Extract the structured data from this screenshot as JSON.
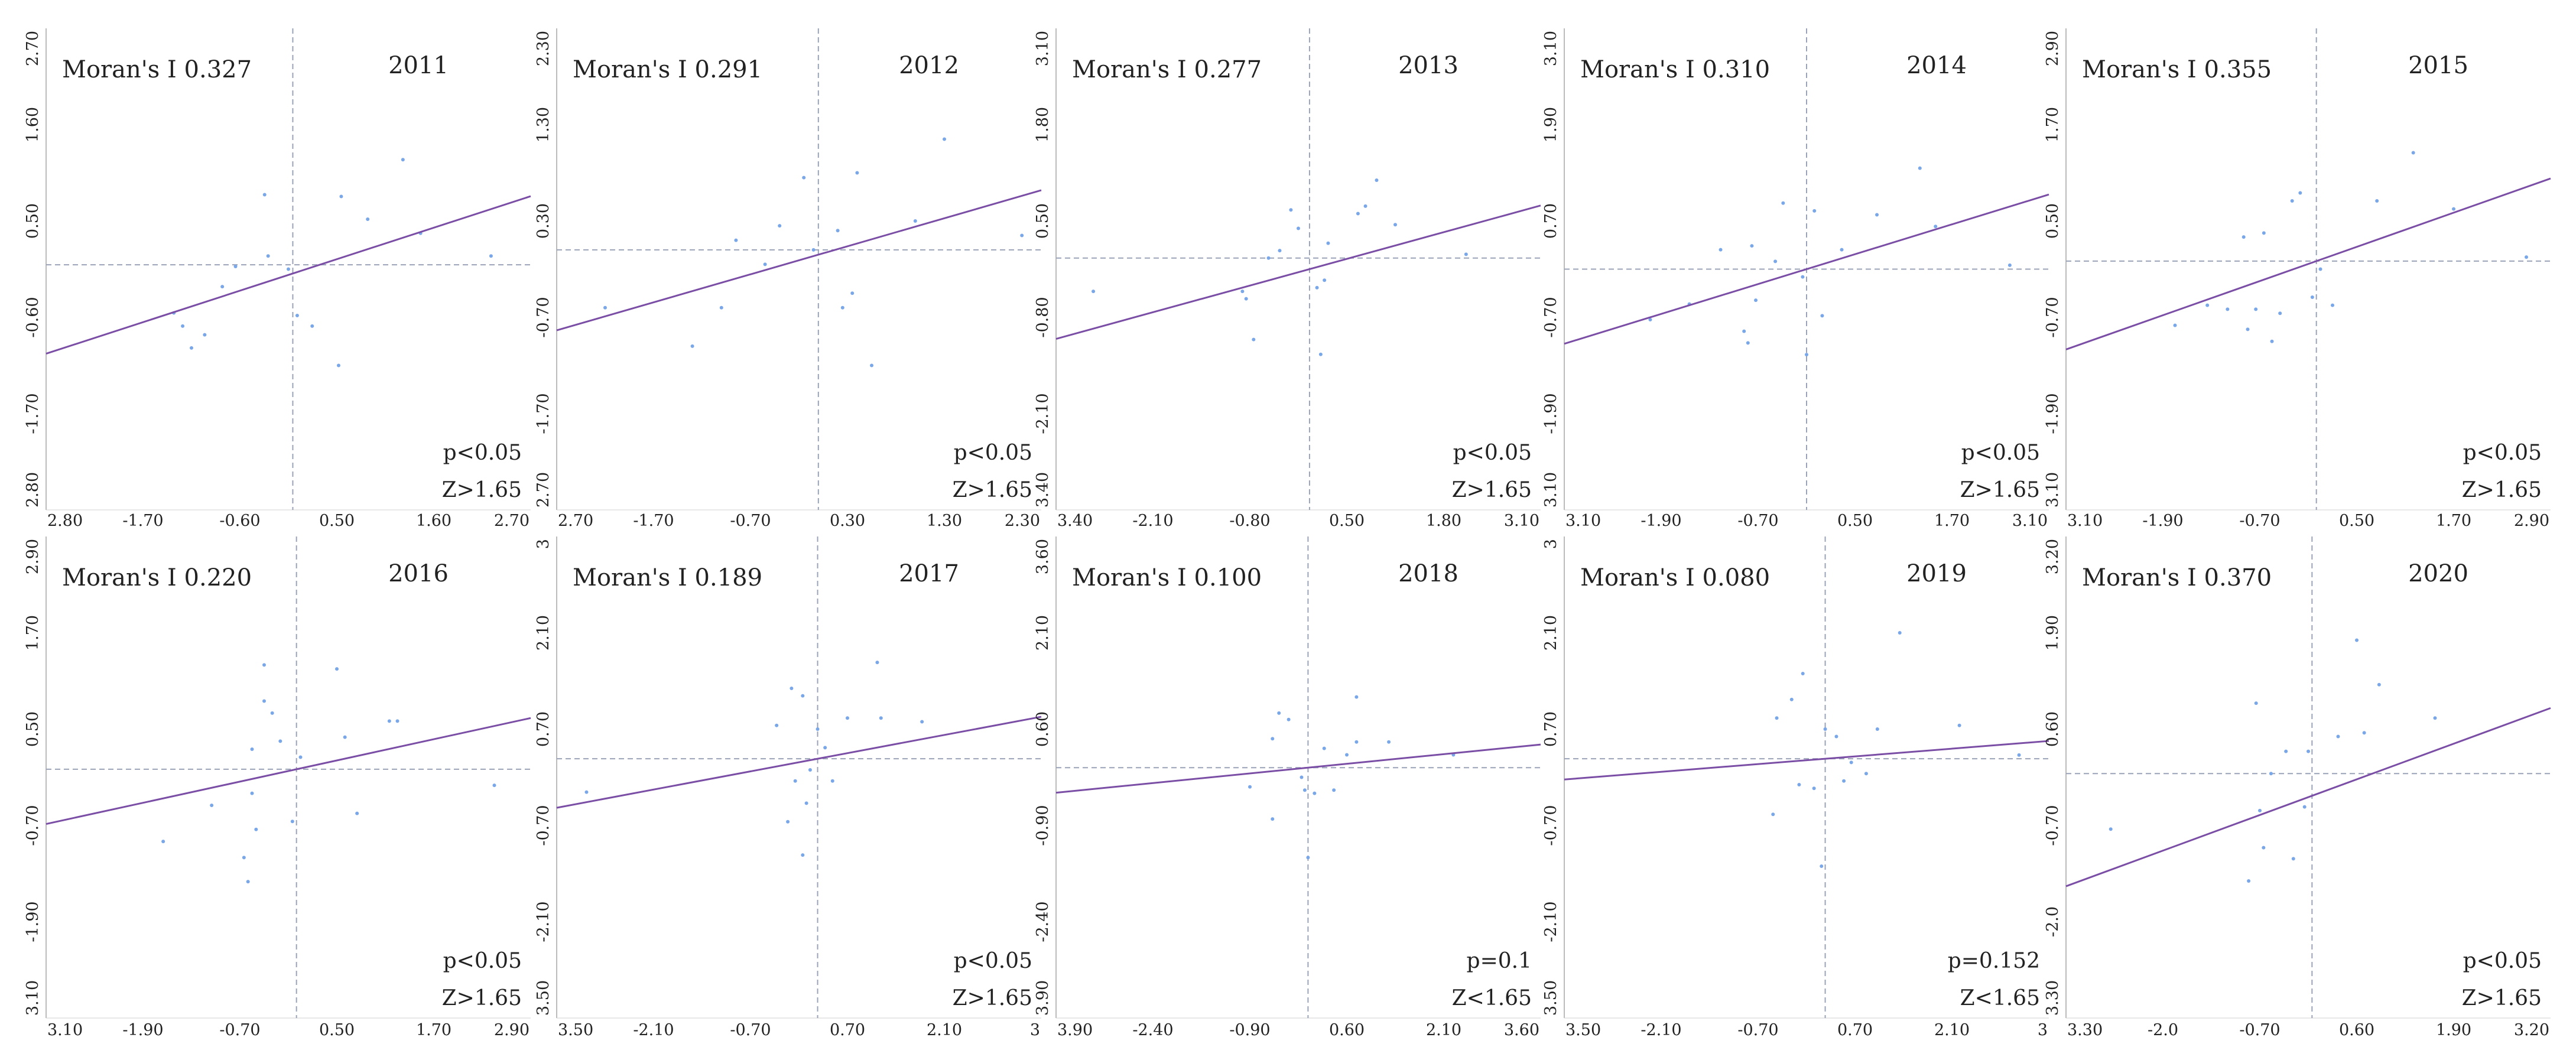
{
  "chart_data": [
    {
      "type": "scatter",
      "title": "2011",
      "moran_label": "Moran's I 0.327",
      "p_label": "p<0.05",
      "z_label": "Z>1.65",
      "xlim": [
        -2.8,
        2.7
      ],
      "ylim": [
        -2.8,
        2.7
      ],
      "x_ticks": [
        "2.80",
        "-1.70",
        "-0.60",
        "0.50",
        "1.60",
        "2.70"
      ],
      "y_ticks": [
        "2.70",
        "1.60",
        "0.50",
        "-0.60",
        "-1.70",
        "2.80"
      ],
      "slope": 0.327,
      "intercept": -0.1,
      "points": [
        [
          -1.35,
          -0.55
        ],
        [
          -1.25,
          -0.7
        ],
        [
          -1.15,
          -0.95
        ],
        [
          -1.0,
          -0.8
        ],
        [
          -0.8,
          -0.25
        ],
        [
          -0.65,
          -0.02
        ],
        [
          -0.32,
          0.8
        ],
        [
          -0.28,
          0.1
        ],
        [
          -0.05,
          -0.05
        ],
        [
          0.05,
          -0.58
        ],
        [
          0.22,
          -0.7
        ],
        [
          0.52,
          -1.15
        ],
        [
          0.55,
          0.78
        ],
        [
          0.85,
          0.52
        ],
        [
          1.25,
          1.2
        ],
        [
          1.45,
          0.36
        ],
        [
          2.25,
          0.1
        ]
      ]
    },
    {
      "type": "scatter",
      "title": "2012",
      "moran_label": "Moran's I 0.291",
      "p_label": "p<0.05",
      "z_label": "Z>1.65",
      "xlim": [
        -2.7,
        2.3
      ],
      "ylim": [
        -2.7,
        2.3
      ],
      "x_ticks": [
        "2.70",
        "-1.70",
        "-0.70",
        "0.30",
        "1.30",
        "2.30"
      ],
      "y_ticks": [
        "2.30",
        "1.30",
        "0.30",
        "-0.70",
        "-1.70",
        "2.70"
      ],
      "slope": 0.291,
      "intercept": -0.05,
      "points": [
        [
          -2.2,
          -0.6
        ],
        [
          -1.3,
          -1.0
        ],
        [
          -1.0,
          -0.6
        ],
        [
          -0.85,
          0.1
        ],
        [
          -0.55,
          -0.15
        ],
        [
          -0.4,
          0.25
        ],
        [
          -0.15,
          0.75
        ],
        [
          -0.05,
          0.0
        ],
        [
          0.2,
          0.2
        ],
        [
          0.25,
          -0.6
        ],
        [
          0.35,
          -0.45
        ],
        [
          0.4,
          0.8
        ],
        [
          0.55,
          -1.2
        ],
        [
          1.0,
          0.3
        ],
        [
          1.3,
          1.15
        ],
        [
          2.1,
          0.15
        ]
      ]
    },
    {
      "type": "scatter",
      "title": "2013",
      "moran_label": "Moran's I 0.277",
      "p_label": "p<0.05",
      "z_label": "Z>1.65",
      "xlim": [
        -3.4,
        3.1
      ],
      "ylim": [
        -3.4,
        3.1
      ],
      "x_ticks": [
        "3.40",
        "-2.10",
        "-0.80",
        "0.50",
        "1.80",
        "3.10"
      ],
      "y_ticks": [
        "3.10",
        "1.80",
        "0.50",
        "-0.80",
        "-2.10",
        "3.40"
      ],
      "slope": 0.277,
      "intercept": -0.15,
      "points": [
        [
          -2.9,
          -0.45
        ],
        [
          -0.9,
          -0.45
        ],
        [
          -0.85,
          -0.55
        ],
        [
          -0.75,
          -1.1
        ],
        [
          -0.55,
          0.0
        ],
        [
          -0.4,
          0.1
        ],
        [
          -0.25,
          0.65
        ],
        [
          -0.15,
          0.4
        ],
        [
          0.1,
          -0.4
        ],
        [
          0.15,
          -1.3
        ],
        [
          0.2,
          -0.3
        ],
        [
          0.25,
          0.2
        ],
        [
          0.65,
          0.6
        ],
        [
          0.75,
          0.7
        ],
        [
          0.9,
          1.05
        ],
        [
          1.15,
          0.45
        ],
        [
          2.1,
          0.05
        ]
      ]
    },
    {
      "type": "scatter",
      "title": "2014",
      "moran_label": "Moran's I 0.310",
      "p_label": "p<0.05",
      "z_label": "Z>1.65",
      "xlim": [
        -3.1,
        3.1
      ],
      "ylim": [
        -3.1,
        3.1
      ],
      "x_ticks": [
        "3.10",
        "-1.90",
        "-0.70",
        "0.50",
        "1.70",
        "3.10"
      ],
      "y_ticks": [
        "3.10",
        "1.90",
        "0.70",
        "-0.70",
        "-1.90",
        "3.10"
      ],
      "slope": 0.31,
      "intercept": 0.0,
      "points": [
        [
          -2.0,
          -0.65
        ],
        [
          -1.5,
          -0.45
        ],
        [
          -1.1,
          0.25
        ],
        [
          -0.8,
          -0.8
        ],
        [
          -0.75,
          -0.95
        ],
        [
          -0.65,
          -0.4
        ],
        [
          -0.7,
          0.3
        ],
        [
          -0.4,
          0.1
        ],
        [
          -0.3,
          0.85
        ],
        [
          -0.05,
          -0.1
        ],
        [
          0.0,
          -1.1
        ],
        [
          0.1,
          0.75
        ],
        [
          0.2,
          -0.6
        ],
        [
          0.45,
          0.25
        ],
        [
          0.9,
          0.7
        ],
        [
          1.45,
          1.3
        ],
        [
          1.65,
          0.55
        ],
        [
          2.6,
          0.05
        ]
      ]
    },
    {
      "type": "scatter",
      "title": "2015",
      "moran_label": "Moran's I 0.355",
      "p_label": "p<0.05",
      "z_label": "Z>1.65",
      "xlim": [
        -3.1,
        2.9
      ],
      "ylim": [
        -3.1,
        2.9
      ],
      "x_ticks": [
        "3.10",
        "-1.90",
        "-0.70",
        "0.50",
        "1.70",
        "2.90"
      ],
      "y_ticks": [
        "2.90",
        "1.70",
        "0.50",
        "-0.70",
        "-1.90",
        "3.10"
      ],
      "slope": 0.355,
      "intercept": 0.0,
      "points": [
        [
          -1.75,
          -0.8
        ],
        [
          -1.35,
          -0.55
        ],
        [
          -1.1,
          -0.6
        ],
        [
          -0.9,
          0.3
        ],
        [
          -0.85,
          -0.85
        ],
        [
          -0.75,
          -0.6
        ],
        [
          -0.65,
          0.35
        ],
        [
          -0.55,
          -1.0
        ],
        [
          -0.45,
          -0.65
        ],
        [
          -0.3,
          0.75
        ],
        [
          -0.2,
          0.85
        ],
        [
          -0.05,
          -0.45
        ],
        [
          0.05,
          -0.1
        ],
        [
          0.2,
          -0.55
        ],
        [
          0.75,
          0.75
        ],
        [
          1.2,
          1.35
        ],
        [
          1.7,
          0.65
        ],
        [
          2.6,
          0.05
        ]
      ]
    },
    {
      "type": "scatter",
      "title": "2016",
      "moran_label": "Moran's I 0.220",
      "p_label": "p<0.05",
      "z_label": "Z>1.65",
      "xlim": [
        -3.1,
        2.9
      ],
      "ylim": [
        -3.1,
        2.9
      ],
      "x_ticks": [
        "3.10",
        "-1.90",
        "-0.70",
        "0.50",
        "1.70",
        "2.90"
      ],
      "y_ticks": [
        "2.90",
        "1.70",
        "0.50",
        "-0.70",
        "-1.90",
        "3.10"
      ],
      "slope": 0.22,
      "intercept": 0.0,
      "points": [
        [
          -1.65,
          -0.9
        ],
        [
          -1.05,
          -0.45
        ],
        [
          -0.55,
          -0.3
        ],
        [
          -0.65,
          -1.1
        ],
        [
          -0.6,
          -1.4
        ],
        [
          -0.5,
          -0.75
        ],
        [
          -0.4,
          1.3
        ],
        [
          -0.4,
          0.85
        ],
        [
          -0.3,
          0.7
        ],
        [
          -0.55,
          0.25
        ],
        [
          -0.2,
          0.35
        ],
        [
          -0.05,
          -0.65
        ],
        [
          0.05,
          0.15
        ],
        [
          0.5,
          1.25
        ],
        [
          0.6,
          0.4
        ],
        [
          0.75,
          -0.55
        ],
        [
          1.15,
          0.6
        ],
        [
          1.25,
          0.6
        ],
        [
          2.45,
          -0.2
        ]
      ]
    },
    {
      "type": "scatter",
      "title": "2017",
      "moran_label": "Moran's I 0.189",
      "p_label": "p<0.05",
      "z_label": "Z>1.65",
      "xlim": [
        -3.5,
        3.0
      ],
      "ylim": [
        -3.5,
        3.0
      ],
      "x_ticks": [
        "3.50",
        "-2.10",
        "-0.70",
        "0.70",
        "2.10",
        "3"
      ],
      "y_ticks": [
        "3",
        "2.10",
        "0.70",
        "-0.70",
        "-2.10",
        "3.50"
      ],
      "slope": 0.189,
      "intercept": 0.0,
      "points": [
        [
          -3.1,
          -0.45
        ],
        [
          -0.55,
          0.45
        ],
        [
          -0.4,
          -0.85
        ],
        [
          -0.3,
          -0.3
        ],
        [
          -0.35,
          0.95
        ],
        [
          -0.2,
          0.85
        ],
        [
          -0.15,
          -0.6
        ],
        [
          -0.2,
          -1.3
        ],
        [
          -0.1,
          -0.15
        ],
        [
          0.0,
          0.4
        ],
        [
          0.1,
          0.15
        ],
        [
          0.2,
          -0.3
        ],
        [
          0.4,
          0.55
        ],
        [
          0.8,
          1.3
        ],
        [
          0.85,
          0.55
        ],
        [
          1.4,
          0.5
        ]
      ]
    },
    {
      "type": "scatter",
      "title": "2018",
      "moran_label": "Moran's I 0.100",
      "p_label": "p=0.1",
      "z_label": "Z<1.65",
      "xlim": [
        -3.9,
        3.6
      ],
      "ylim": [
        -3.9,
        3.6
      ],
      "x_ticks": [
        "3.90",
        "-2.40",
        "-0.90",
        "0.60",
        "2.10",
        "3.60"
      ],
      "y_ticks": [
        "3.60",
        "2.10",
        "0.60",
        "-0.90",
        "-2.40",
        "3.90"
      ],
      "slope": 0.1,
      "intercept": 0.0,
      "points": [
        [
          -0.9,
          -0.3
        ],
        [
          -0.55,
          0.45
        ],
        [
          -0.45,
          0.85
        ],
        [
          -0.3,
          0.75
        ],
        [
          -0.55,
          -0.8
        ],
        [
          -0.1,
          -0.15
        ],
        [
          -0.05,
          -0.35
        ],
        [
          0.0,
          -1.4
        ],
        [
          0.1,
          -0.4
        ],
        [
          0.25,
          0.3
        ],
        [
          0.4,
          -0.35
        ],
        [
          0.6,
          0.2
        ],
        [
          0.75,
          0.4
        ],
        [
          0.75,
          1.1
        ],
        [
          1.25,
          0.4
        ],
        [
          2.25,
          0.2
        ]
      ]
    },
    {
      "type": "scatter",
      "title": "2019",
      "moran_label": "Moran's I 0.080",
      "p_label": "p=0.152",
      "z_label": "Z<1.65",
      "xlim": [
        -3.5,
        3.0
      ],
      "ylim": [
        -3.5,
        3.0
      ],
      "x_ticks": [
        "3.50",
        "-2.10",
        "-0.70",
        "0.70",
        "2.10",
        "3"
      ],
      "y_ticks": [
        "3",
        "2.10",
        "0.70",
        "-0.70",
        "-2.10",
        "3.50"
      ],
      "slope": 0.08,
      "intercept": 0.0,
      "points": [
        [
          -0.7,
          -0.75
        ],
        [
          -0.65,
          0.55
        ],
        [
          -0.45,
          0.8
        ],
        [
          -0.3,
          1.15
        ],
        [
          -0.35,
          -0.35
        ],
        [
          -0.15,
          -0.4
        ],
        [
          -0.05,
          -1.45
        ],
        [
          0.0,
          0.4
        ],
        [
          0.15,
          0.3
        ],
        [
          0.25,
          -0.3
        ],
        [
          0.35,
          -0.05
        ],
        [
          0.55,
          -0.2
        ],
        [
          0.7,
          0.4
        ],
        [
          1.0,
          1.7
        ],
        [
          1.8,
          0.45
        ],
        [
          2.6,
          0.05
        ]
      ]
    },
    {
      "type": "scatter",
      "title": "2020",
      "moran_label": "Moran's I 0.370",
      "p_label": "p<0.05",
      "z_label": "Z>1.65",
      "xlim": [
        -3.3,
        3.2
      ],
      "ylim": [
        -3.3,
        3.2
      ],
      "x_ticks": [
        "3.30",
        "-2.0",
        "-0.70",
        "0.60",
        "1.90",
        "3.20"
      ],
      "y_ticks": [
        "3.20",
        "1.90",
        "0.60",
        "-0.70",
        "-2.0",
        "3.30"
      ],
      "slope": 0.37,
      "intercept": -0.3,
      "points": [
        [
          -2.7,
          -0.75
        ],
        [
          -0.85,
          -1.45
        ],
        [
          -0.75,
          0.95
        ],
        [
          -0.7,
          -0.5
        ],
        [
          -0.65,
          -1.0
        ],
        [
          -0.55,
          0.0
        ],
        [
          -0.35,
          0.3
        ],
        [
          -0.1,
          -0.45
        ],
        [
          -0.05,
          0.3
        ],
        [
          -0.25,
          -1.15
        ],
        [
          0.35,
          0.5
        ],
        [
          0.6,
          1.8
        ],
        [
          0.7,
          0.55
        ],
        [
          0.9,
          1.2
        ],
        [
          1.65,
          0.75
        ]
      ]
    }
  ]
}
